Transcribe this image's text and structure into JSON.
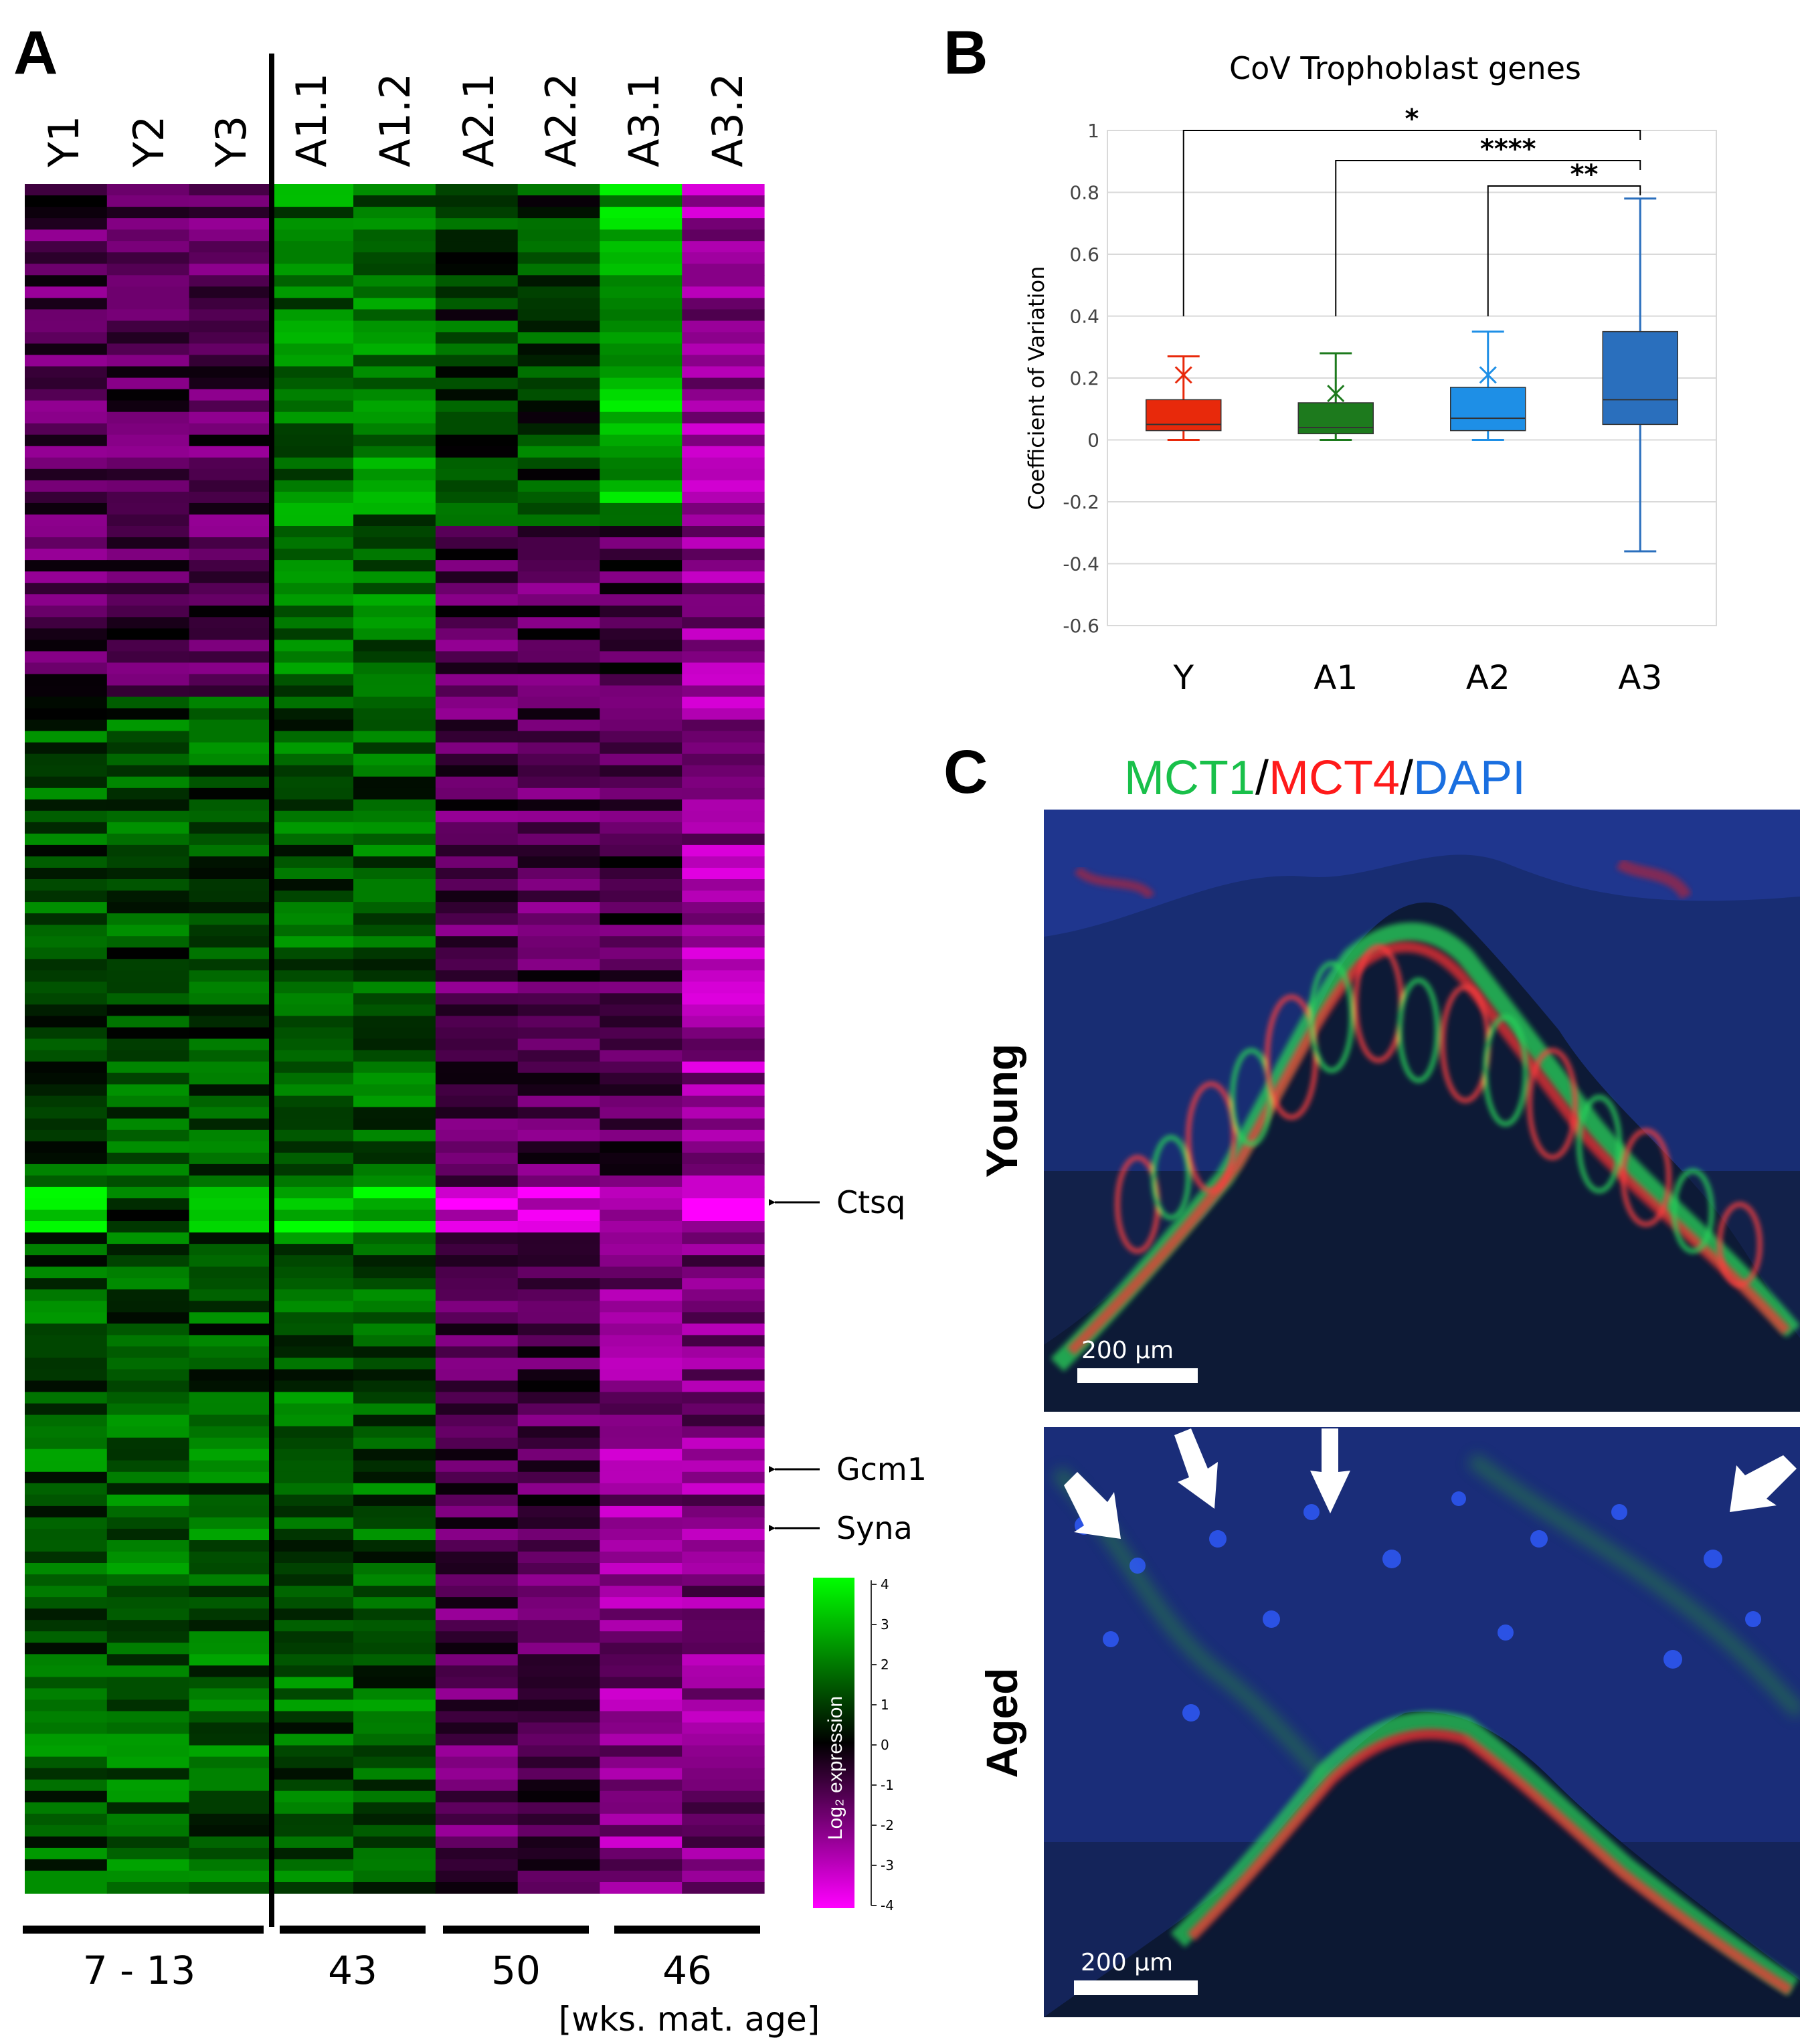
{
  "panels": {
    "a": {
      "letter": "A",
      "columns": [
        "Y1",
        "Y2",
        "Y3",
        "A1.1",
        "A1.2",
        "A2.1",
        "A2.2",
        "A3.1",
        "A3.2"
      ],
      "gene_labels": [
        "Ctsq",
        "Gcm1",
        "Syna"
      ],
      "group_labels": [
        "7 - 13",
        "43",
        "50",
        "46"
      ],
      "unit_label": "[wks. mat. age]",
      "colorbar": {
        "label": "Log₂ expression",
        "ticks": [
          "4",
          "3",
          "2",
          "1",
          "0",
          "-1",
          "-2",
          "-3",
          "-4"
        ],
        "low_color": "#ff00ff",
        "mid_color": "#000000",
        "high_color": "#00ff00"
      }
    },
    "b": {
      "letter": "B",
      "significance": [
        "*",
        "****",
        "**"
      ]
    },
    "c": {
      "letter": "C",
      "title_parts": [
        "MCT1",
        "/",
        "MCT4",
        "/",
        "DAPI"
      ],
      "title_colors": [
        "#19c04a",
        "#000000",
        "#ff1a1a",
        "#000000",
        "#1a6fe0"
      ],
      "images": [
        {
          "side_label": "Young",
          "scale_bar": "200 µm"
        },
        {
          "side_label": "Aged",
          "scale_bar": "200 µm"
        }
      ]
    }
  },
  "chart_data": {
    "type": "box",
    "title": "CoV Trophoblast genes",
    "xlabel": "",
    "ylabel": "Coefficient of Variation",
    "ylim": [
      -0.6,
      1
    ],
    "yticks": [
      "1",
      "0.8",
      "0.6",
      "0.4",
      "0.2",
      "0",
      "-0.2",
      "-0.4",
      "-0.6"
    ],
    "grid": true,
    "categories": [
      "Y",
      "A1",
      "A2",
      "A3"
    ],
    "colors": [
      "#e8290b",
      "#1d7a1d",
      "#1e8fe6",
      "#2a6fbd"
    ],
    "boxes": [
      {
        "category": "Y",
        "min": 0.0,
        "q1": 0.03,
        "median": 0.05,
        "q3": 0.13,
        "max": 0.27,
        "mean": 0.21
      },
      {
        "category": "A1",
        "min": 0.0,
        "q1": 0.02,
        "median": 0.04,
        "q3": 0.12,
        "max": 0.28,
        "mean": 0.15
      },
      {
        "category": "A2",
        "min": 0.0,
        "q1": 0.03,
        "median": 0.07,
        "q3": 0.17,
        "max": 0.35,
        "mean": 0.21
      },
      {
        "category": "A3",
        "min": -0.36,
        "q1": 0.05,
        "median": 0.13,
        "q3": 0.35,
        "max": 0.78,
        "mean": 0.32
      }
    ],
    "comparisons": [
      {
        "from": "Y",
        "to": "A3",
        "label": "*"
      },
      {
        "from": "A1",
        "to": "A3",
        "label": "****"
      },
      {
        "from": "A2",
        "to": "A3",
        "label": "**"
      }
    ]
  }
}
